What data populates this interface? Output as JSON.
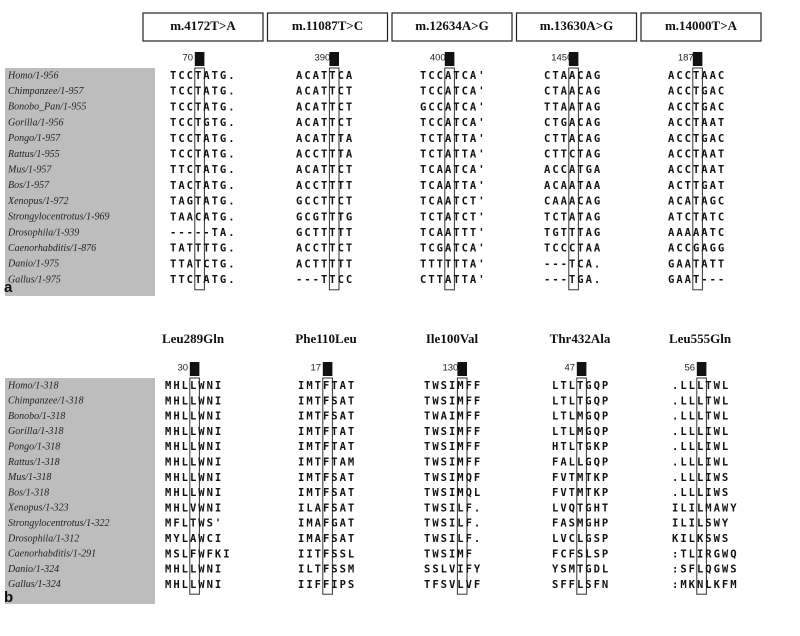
{
  "panels": [
    {
      "label": "a",
      "species": [
        "Homo/1-956",
        "Chimpanzee/1-957",
        "Bonobo_Pan/1-955",
        "Gorilla/1-956",
        "Pongo/1-957",
        "Rattus/1-955",
        "Mus/1-957",
        "Bos/1-957",
        "Xenopus/1-972",
        "Strongylocentrotus/1-969",
        "Drosophila/1-939",
        "Caenorhabditis/1-876",
        "Danio/1-975",
        "Gallus/1-975"
      ],
      "alignments": [
        {
          "header": "m.4172T>A",
          "position": "70",
          "rows": [
            "TCCTATG.",
            "TCCTATG.",
            "TCCTATG.",
            "TCCTGTG.",
            "TCCTATG.",
            "TCCTATG.",
            "TTCTATG.",
            "TACTATG.",
            "TAGTATG.",
            "TAACATG.",
            "-----TA.",
            "TATTTTG.",
            "TTATCTG.",
            "TTCTATG."
          ]
        },
        {
          "header": "m.11087T>C",
          "position": "390",
          "rows": [
            "ACATTCA",
            "ACATTCT",
            "ACATTCT",
            "ACATTCT",
            "ACATTTA",
            "ACCTTTA",
            "ACATTCT",
            "ACCTTTT",
            "GCCTTCT",
            "GCGTTTG",
            "GCTTTTT",
            "ACCTTCT",
            "ACTTTTT",
            "---TTCC"
          ]
        },
        {
          "header": "m.12634A>G",
          "position": "400",
          "rows": [
            "TCCATCA'",
            "TCCATCA'",
            "GCCATCA'",
            "TCCATCA'",
            "TCTATTA'",
            "TCTATTA'",
            "TCAATCA'",
            "TCAATTA'",
            "TCAATCT'",
            "TCTATCT'",
            "TCAATTT'",
            "TCGATCA'",
            "TTTTTTA'",
            "CTTATTA'"
          ]
        },
        {
          "header": "m.13630A>G",
          "position": "1450",
          "rows": [
            "CTAACAG",
            "CTAACAG",
            "TTAATAG",
            "CTGACAG",
            "CTTACAG",
            "CTTCTAG",
            "ACCATGA",
            "ACAATAA",
            "CAAACAG",
            "TCTATAG",
            "TGTTTAG",
            "TCCCTAA",
            "---TCA.",
            "---TGA."
          ]
        },
        {
          "header": "m.14000T>A",
          "position": "187",
          "rows": [
            "ACCTAAC",
            "ACCTGAC",
            "ACCTGAC",
            "ACCTAAT",
            "ACCTGAC",
            "ACCTAAT",
            "ACCTAAT",
            "ACTTGAT",
            "ACATAGC",
            "ATCTATC",
            "AAAAATC",
            "ACCGAGG",
            "GAATATT",
            "GAAT---"
          ]
        }
      ]
    },
    {
      "label": "b",
      "species": [
        "Homo/1-318",
        "Chimpanzee/1-318",
        "Bonobo/1-318",
        "Gorilla/1-318",
        "Pongo/1-318",
        "Rattus/1-318",
        "Mus/1-318",
        "Bos/1-318",
        "Xenopus/1-323",
        "Strongylocentrotus/1-322",
        "Drosophila/1-312",
        "Caenorhabditis/1-291",
        "Danio/1-324",
        "Gallus/1-324"
      ],
      "alignments": [
        {
          "header": "Leu289Gln",
          "position": "30",
          "rows": [
            "MHLLWNI",
            "MHLLWNI",
            "MHLLWNI",
            "MHLLWNI",
            "MHLLWNI",
            "MHLLWNI",
            "MHLLWNI",
            "MHLLWNI",
            "MHLVWNI",
            "MFLTWS'",
            "MYLAWCI",
            "MSLFWFKI",
            "MHLLWNI",
            "MHLLWNI"
          ]
        },
        {
          "header": "Phe110Leu",
          "position": "17",
          "rows": [
            "IMTFTAT",
            "IMTFSAT",
            "IMTFSAT",
            "IMTFTAT",
            "IMTFTAT",
            "IMTFTAM",
            "IMTFSAT",
            "IMTFSAT",
            "ILAFSAT",
            "IMAFGAT",
            "IMAFSAT",
            "IITFSSL",
            "ILTFSSM",
            "IIFFIPS"
          ]
        },
        {
          "header": "Ile100Val",
          "position": "130",
          "rows": [
            "TWSIMFF",
            "TWSIMFF",
            "TWAIMFF",
            "TWSIMFF",
            "TWSIMFF",
            "TWSIMFF",
            "TWSIMQF",
            "TWSIMQL",
            "TWSILF.",
            "TWSILF.",
            "TWSILF.",
            "TWSIMF",
            "SSLVIFY",
            "TFSVLVF"
          ]
        },
        {
          "header": "Thr432Ala",
          "position": "47",
          "rows": [
            "LTLTGQP",
            "LTLTGQP",
            "LTLMGQP",
            "LTLMGQP",
            "HTLTGKP",
            "FALLGQP",
            "FVTMTKP",
            "FVTMTKP",
            "LVQTGHT",
            "FASMGHP",
            "LVCLGSP",
            "FCFSLSP",
            "YSMTGDL",
            "SFFLSFN"
          ]
        },
        {
          "header": "Leu555Gln",
          "position": "56",
          "rows": [
            ".LLLTWL",
            ".LLLTWL",
            ".LLLTWL",
            ".LLLIWL",
            ".LLLIWL",
            ".LLLIWL",
            ".LLLIWS",
            ".LLLIWS",
            "ILILMAWY",
            "ILILSWY",
            "KILKSWS",
            ":TLIRGWQ",
            ":SFLQGWS",
            ":MKNLKFM"
          ]
        }
      ]
    }
  ]
}
